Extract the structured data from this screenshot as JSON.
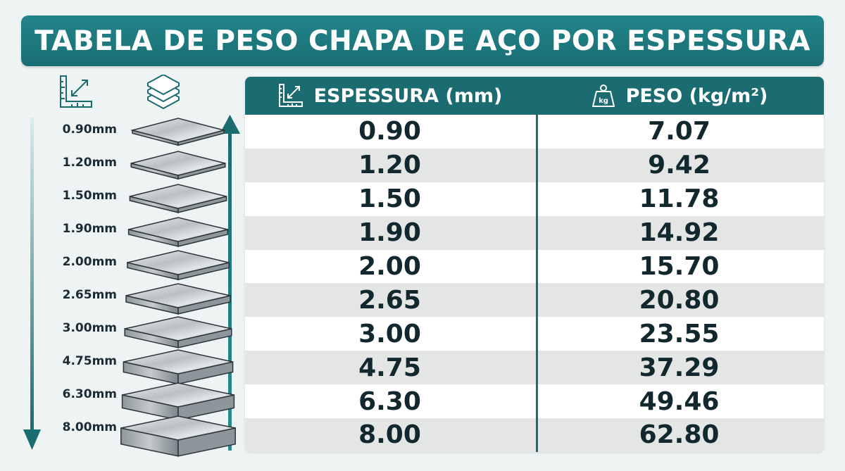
{
  "title": "TABELA DE PESO CHAPA DE AÇO POR ESPESSURA",
  "table": {
    "columns": [
      "ESPESSURA (mm)",
      "PESO (kg/m²)"
    ],
    "weight_icon_text": "kg"
  },
  "sheet_labels": [
    "0.90mm",
    "1.20mm",
    "1.50mm",
    "1.90mm",
    "2.00mm",
    "2.65mm",
    "3.00mm",
    "4.75mm",
    "6.30mm",
    "8.00mm"
  ],
  "colors": {
    "accent": "#1b6c70",
    "header": "#21858a",
    "row_alt": "#e4e6e6",
    "text": "#12282f"
  },
  "icons": [
    "ruler-icon",
    "sheets-icon",
    "scale-weight-icon"
  ],
  "chart_data": {
    "type": "table",
    "title": "TABELA DE PESO CHAPA DE AÇO POR ESPESSURA",
    "columns": [
      "ESPESSURA (mm)",
      "PESO (kg/m²)"
    ],
    "rows": [
      [
        "0.90",
        "7.07"
      ],
      [
        "1.20",
        "9.42"
      ],
      [
        "1.50",
        "11.78"
      ],
      [
        "1.90",
        "14.92"
      ],
      [
        "2.00",
        "15.70"
      ],
      [
        "2.65",
        "20.80"
      ],
      [
        "3.00",
        "23.55"
      ],
      [
        "4.75",
        "37.29"
      ],
      [
        "6.30",
        "49.46"
      ],
      [
        "8.00",
        "62.80"
      ]
    ]
  }
}
